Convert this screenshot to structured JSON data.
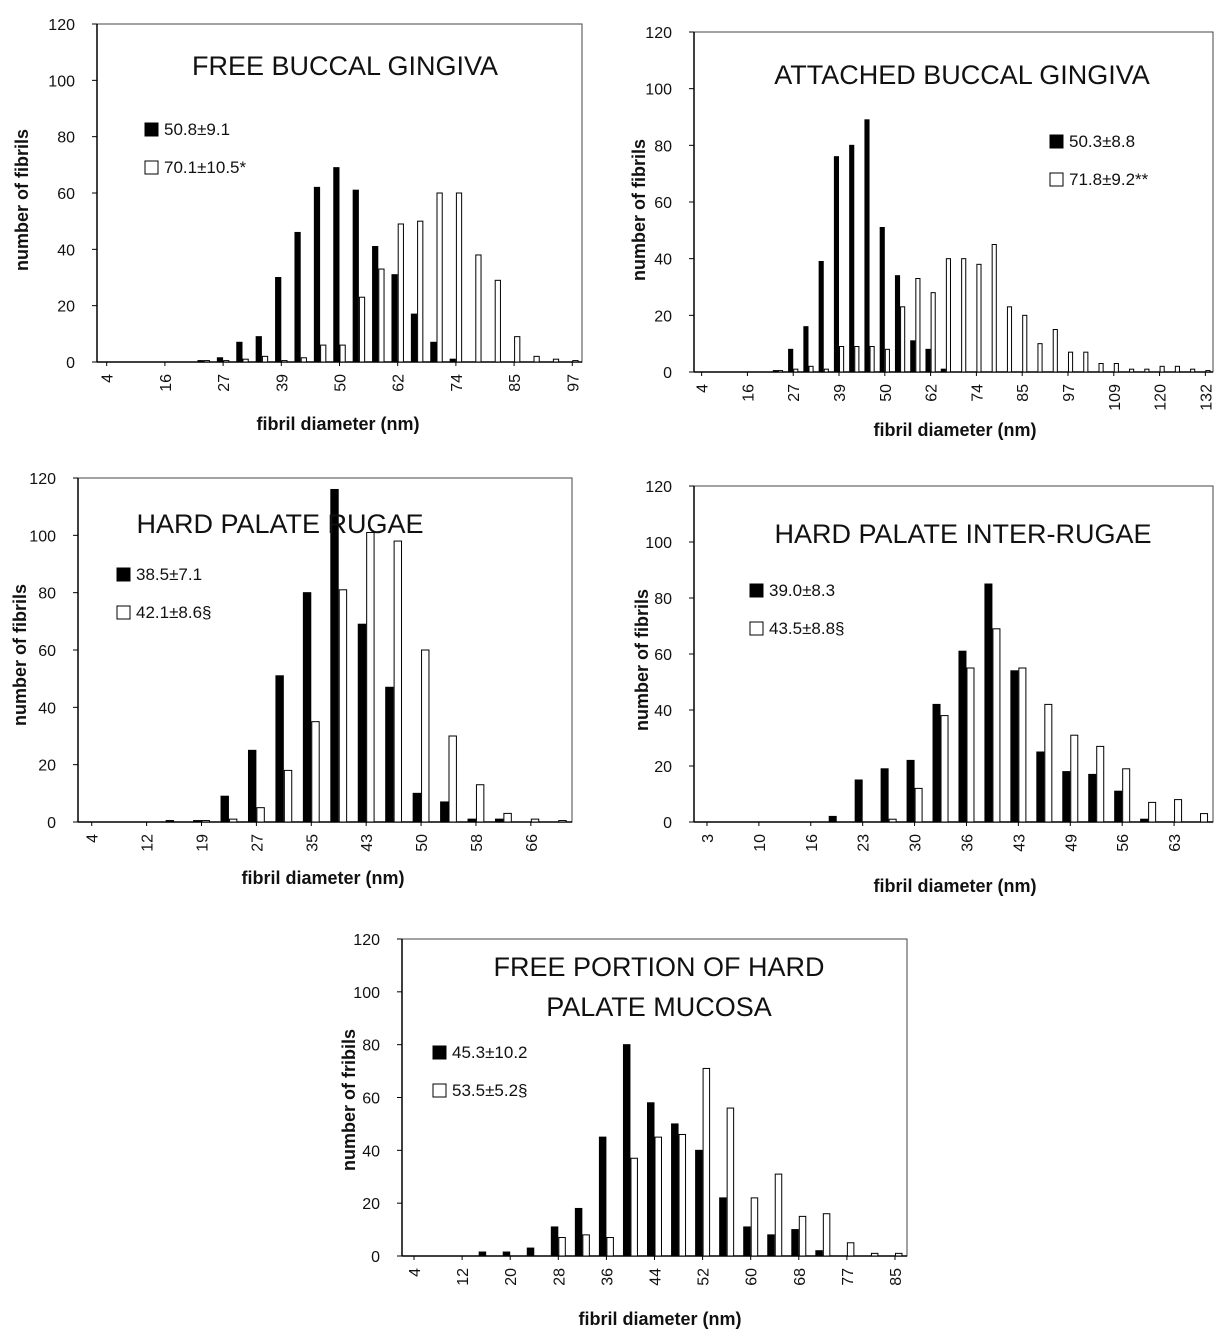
{
  "chart_data": [
    {
      "type": "bar",
      "title": "FREE BUCCAL GINGIVA",
      "xlabel": "fibril diameter (nm)",
      "ylabel": "number of fibrils",
      "ylim": [
        0,
        120
      ],
      "yticks": [
        0,
        20,
        40,
        60,
        80,
        100,
        120
      ],
      "xtick_labels": [
        "4",
        "16",
        "27",
        "39",
        "50",
        "62",
        "74",
        "85",
        "97"
      ],
      "categories": [
        "4",
        "8",
        "12",
        "16",
        "20",
        "23",
        "27",
        "31",
        "35",
        "39",
        "43",
        "47",
        "50",
        "54",
        "58",
        "62",
        "66",
        "70",
        "74",
        "78",
        "81",
        "85",
        "89",
        "93",
        "97"
      ],
      "series": [
        {
          "name": "50.8±9.1",
          "color": "#000000",
          "values": [
            0,
            0,
            0,
            0,
            0,
            0.5,
            1.5,
            7,
            9,
            30,
            46,
            62,
            69,
            61,
            41,
            31,
            17,
            7,
            1,
            0,
            0,
            0,
            0,
            0,
            0
          ]
        },
        {
          "name": "70.1±10.5*",
          "color": "#ffffff",
          "values": [
            0,
            0,
            0,
            0,
            0,
            0.5,
            0.5,
            1,
            2,
            0.5,
            1.5,
            6,
            6,
            23,
            33,
            49,
            50,
            60,
            60,
            38,
            29,
            9,
            2,
            1,
            0.5
          ]
        }
      ],
      "legend_position": "upper-left"
    },
    {
      "type": "bar",
      "title": "ATTACHED BUCCAL GINGIVA",
      "xlabel": "fibril diameter (nm)",
      "ylabel": "number of fibrils",
      "ylim": [
        0,
        120
      ],
      "yticks": [
        0,
        20,
        40,
        60,
        80,
        100,
        120
      ],
      "xtick_labels": [
        "4",
        "16",
        "27",
        "39",
        "50",
        "62",
        "74",
        "85",
        "97",
        "109",
        "120",
        "132"
      ],
      "categories": [
        "4",
        "8",
        "12",
        "16",
        "20",
        "23",
        "27",
        "31",
        "35",
        "39",
        "43",
        "47",
        "50",
        "54",
        "58",
        "62",
        "66",
        "70",
        "74",
        "78",
        "81",
        "85",
        "89",
        "93",
        "97",
        "101",
        "105",
        "109",
        "113",
        "116",
        "120",
        "124",
        "128",
        "132"
      ],
      "series": [
        {
          "name": "50.3±8.8",
          "color": "#000000",
          "values": [
            0,
            0,
            0,
            0,
            0,
            0.5,
            8,
            16,
            39,
            76,
            80,
            89,
            51,
            34,
            11,
            8,
            1,
            0,
            0,
            0,
            0,
            0,
            0,
            0,
            0,
            0,
            0,
            0,
            0,
            0,
            0,
            0,
            0,
            0
          ]
        },
        {
          "name": "71.8±9.2**",
          "color": "#ffffff",
          "values": [
            0,
            0,
            0,
            0,
            0,
            0.5,
            1,
            2,
            1,
            9,
            9,
            9,
            8,
            23,
            33,
            28,
            40,
            40,
            38,
            45,
            23,
            20,
            10,
            15,
            7,
            7,
            3,
            3,
            1,
            1,
            2,
            2,
            1,
            0.5
          ]
        }
      ],
      "legend_position": "right"
    },
    {
      "type": "bar",
      "title": "HARD PALATE  RUGAE",
      "xlabel": "fibril diameter (nm)",
      "ylabel": "number of fibrils",
      "ylim": [
        0,
        120
      ],
      "yticks": [
        0,
        20,
        40,
        60,
        80,
        100,
        120
      ],
      "xtick_labels": [
        "4",
        "12",
        "19",
        "27",
        "35",
        "43",
        "50",
        "58",
        "66"
      ],
      "categories": [
        "4",
        "8",
        "12",
        "16",
        "19",
        "23",
        "27",
        "31",
        "35",
        "39",
        "43",
        "47",
        "50",
        "54",
        "58",
        "62",
        "66",
        "70"
      ],
      "series": [
        {
          "name": "38.5±7.1",
          "color": "#000000",
          "values": [
            0,
            0,
            0,
            0.5,
            0.5,
            9,
            25,
            51,
            80,
            116,
            69,
            47,
            10,
            7,
            1,
            1,
            0,
            0
          ]
        },
        {
          "name": "42.1±8.6§",
          "color": "#ffffff",
          "values": [
            0,
            0,
            0,
            0,
            0.5,
            1,
            5,
            18,
            35,
            81,
            101,
            98,
            60,
            30,
            13,
            3,
            1,
            0.5
          ]
        }
      ],
      "legend_position": "upper-left"
    },
    {
      "type": "bar",
      "title": "HARD PALATE INTER-RUGAE",
      "xlabel": "fibril diameter (nm)",
      "ylabel": "number of fibrils",
      "ylim": [
        0,
        120
      ],
      "yticks": [
        0,
        20,
        40,
        60,
        80,
        100,
        120
      ],
      "xtick_labels": [
        "3",
        "10",
        "16",
        "23",
        "30",
        "36",
        "43",
        "49",
        "56",
        "63"
      ],
      "categories": [
        "3",
        "6",
        "10",
        "13",
        "16",
        "20",
        "23",
        "27",
        "30",
        "33",
        "36",
        "40",
        "43",
        "46",
        "49",
        "53",
        "56",
        "60",
        "63",
        "66"
      ],
      "series": [
        {
          "name": "39.0±8.3",
          "color": "#000000",
          "values": [
            0,
            0,
            0,
            0,
            0,
            2,
            15,
            19,
            22,
            42,
            61,
            85,
            54,
            25,
            18,
            17,
            11,
            1,
            0,
            0
          ]
        },
        {
          "name": "43.5±8.8§",
          "color": "#ffffff",
          "values": [
            0,
            0,
            0,
            0,
            0,
            0,
            0,
            1,
            12,
            38,
            55,
            69,
            55,
            42,
            31,
            27,
            19,
            7,
            8,
            3
          ]
        }
      ],
      "legend_position": "upper-left"
    },
    {
      "type": "bar",
      "title": "FREE PORTION OF HARD\nPALATE MUCOSA",
      "title_lines": [
        "FREE PORTION OF HARD",
        "PALATE MUCOSA"
      ],
      "xlabel": "fibril diameter (nm)",
      "ylabel": "number of fribils",
      "ylim": [
        0,
        120
      ],
      "yticks": [
        0,
        20,
        40,
        60,
        80,
        100,
        120
      ],
      "xtick_labels": [
        "4",
        "12",
        "20",
        "28",
        "36",
        "44",
        "52",
        "60",
        "68",
        "77",
        "85"
      ],
      "categories": [
        "4",
        "8",
        "12",
        "16",
        "20",
        "24",
        "28",
        "32",
        "36",
        "40",
        "44",
        "48",
        "52",
        "56",
        "60",
        "64",
        "68",
        "72",
        "77",
        "81",
        "85"
      ],
      "series": [
        {
          "name": "45.3±10.2",
          "color": "#000000",
          "values": [
            0,
            0,
            0,
            1.5,
            1.5,
            3,
            11,
            18,
            45,
            80,
            58,
            50,
            40,
            22,
            11,
            8,
            10,
            2,
            0,
            0,
            0
          ]
        },
        {
          "name": "53.5±5.2§",
          "color": "#ffffff",
          "values": [
            0,
            0,
            0,
            0,
            0,
            0,
            7,
            8,
            7,
            37,
            45,
            46,
            71,
            56,
            22,
            31,
            15,
            16,
            5,
            1,
            1
          ]
        }
      ],
      "legend_position": "upper-left"
    }
  ]
}
